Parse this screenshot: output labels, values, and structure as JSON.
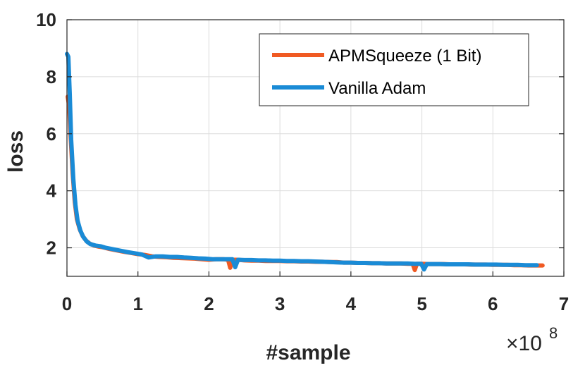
{
  "chart_data": {
    "type": "line",
    "title": "",
    "xlabel": "#sample",
    "ylabel": "loss",
    "x_multiplier_label": {
      "base": "×10",
      "exponent": "8"
    },
    "xlim": [
      0,
      7
    ],
    "ylim": [
      1,
      10
    ],
    "xticks": [
      0,
      1,
      2,
      3,
      4,
      5,
      6,
      7
    ],
    "yticks": [
      2,
      4,
      6,
      8,
      10
    ],
    "grid": true,
    "legend_position": "top-right",
    "series": [
      {
        "name": "APMSqueeze (1 Bit)",
        "color": "#F05A23",
        "points": [
          [
            0.01,
            7.3
          ],
          [
            0.03,
            7.0
          ],
          [
            0.05,
            6.0
          ],
          [
            0.08,
            4.6
          ],
          [
            0.11,
            3.6
          ],
          [
            0.14,
            3.0
          ],
          [
            0.18,
            2.65
          ],
          [
            0.22,
            2.42
          ],
          [
            0.27,
            2.25
          ],
          [
            0.32,
            2.15
          ],
          [
            0.38,
            2.08
          ],
          [
            0.45,
            2.04
          ],
          [
            0.5,
            2.02
          ],
          [
            0.6,
            1.96
          ],
          [
            0.7,
            1.91
          ],
          [
            0.8,
            1.86
          ],
          [
            0.9,
            1.82
          ],
          [
            1.0,
            1.78
          ],
          [
            1.1,
            1.75
          ],
          [
            1.2,
            1.7
          ],
          [
            1.3,
            1.68
          ],
          [
            1.4,
            1.67
          ],
          [
            1.5,
            1.65
          ],
          [
            1.6,
            1.64
          ],
          [
            1.7,
            1.63
          ],
          [
            1.8,
            1.62
          ],
          [
            1.9,
            1.6
          ],
          [
            2.0,
            1.58
          ],
          [
            2.1,
            1.6
          ],
          [
            2.2,
            1.6
          ],
          [
            2.27,
            1.58
          ],
          [
            2.3,
            1.3
          ],
          [
            2.33,
            1.58
          ],
          [
            2.4,
            1.58
          ],
          [
            2.5,
            1.56
          ],
          [
            2.6,
            1.55
          ],
          [
            2.7,
            1.55
          ],
          [
            2.8,
            1.54
          ],
          [
            2.9,
            1.54
          ],
          [
            3.0,
            1.54
          ],
          [
            3.1,
            1.53
          ],
          [
            3.2,
            1.53
          ],
          [
            3.3,
            1.52
          ],
          [
            3.4,
            1.52
          ],
          [
            3.5,
            1.51
          ],
          [
            3.6,
            1.51
          ],
          [
            3.7,
            1.5
          ],
          [
            3.8,
            1.5
          ],
          [
            3.9,
            1.48
          ],
          [
            4.0,
            1.48
          ],
          [
            4.1,
            1.47
          ],
          [
            4.2,
            1.47
          ],
          [
            4.3,
            1.46
          ],
          [
            4.4,
            1.46
          ],
          [
            4.5,
            1.45
          ],
          [
            4.6,
            1.45
          ],
          [
            4.7,
            1.45
          ],
          [
            4.8,
            1.44
          ],
          [
            4.87,
            1.44
          ],
          [
            4.9,
            1.22
          ],
          [
            4.93,
            1.44
          ],
          [
            5.0,
            1.44
          ],
          [
            5.1,
            1.43
          ],
          [
            5.2,
            1.43
          ],
          [
            5.3,
            1.43
          ],
          [
            5.4,
            1.42
          ],
          [
            5.5,
            1.42
          ],
          [
            5.6,
            1.42
          ],
          [
            5.7,
            1.41
          ],
          [
            5.8,
            1.41
          ],
          [
            5.9,
            1.41
          ],
          [
            6.0,
            1.4
          ],
          [
            6.1,
            1.4
          ],
          [
            6.2,
            1.4
          ],
          [
            6.3,
            1.39
          ],
          [
            6.4,
            1.39
          ],
          [
            6.5,
            1.38
          ],
          [
            6.6,
            1.38
          ],
          [
            6.7,
            1.38
          ]
        ]
      },
      {
        "name": "Vanilla Adam",
        "color": "#1A8BD6",
        "points": [
          [
            0.0,
            8.8
          ],
          [
            0.02,
            8.7
          ],
          [
            0.04,
            7.4
          ],
          [
            0.06,
            5.8
          ],
          [
            0.09,
            4.4
          ],
          [
            0.12,
            3.5
          ],
          [
            0.15,
            2.95
          ],
          [
            0.19,
            2.6
          ],
          [
            0.23,
            2.38
          ],
          [
            0.28,
            2.22
          ],
          [
            0.33,
            2.13
          ],
          [
            0.4,
            2.08
          ],
          [
            0.48,
            2.05
          ],
          [
            0.55,
            2.0
          ],
          [
            0.65,
            1.95
          ],
          [
            0.75,
            1.9
          ],
          [
            0.85,
            1.85
          ],
          [
            0.95,
            1.81
          ],
          [
            1.05,
            1.77
          ],
          [
            1.15,
            1.66
          ],
          [
            1.25,
            1.7
          ],
          [
            1.35,
            1.7
          ],
          [
            1.45,
            1.68
          ],
          [
            1.55,
            1.68
          ],
          [
            1.65,
            1.66
          ],
          [
            1.75,
            1.65
          ],
          [
            1.85,
            1.63
          ],
          [
            1.95,
            1.62
          ],
          [
            2.05,
            1.6
          ],
          [
            2.15,
            1.6
          ],
          [
            2.25,
            1.6
          ],
          [
            2.33,
            1.6
          ],
          [
            2.37,
            1.32
          ],
          [
            2.41,
            1.58
          ],
          [
            2.5,
            1.57
          ],
          [
            2.6,
            1.57
          ],
          [
            2.7,
            1.56
          ],
          [
            2.8,
            1.56
          ],
          [
            2.9,
            1.55
          ],
          [
            3.0,
            1.55
          ],
          [
            3.1,
            1.54
          ],
          [
            3.2,
            1.54
          ],
          [
            3.3,
            1.53
          ],
          [
            3.4,
            1.53
          ],
          [
            3.5,
            1.52
          ],
          [
            3.6,
            1.51
          ],
          [
            3.7,
            1.5
          ],
          [
            3.8,
            1.49
          ],
          [
            3.9,
            1.48
          ],
          [
            4.0,
            1.48
          ],
          [
            4.1,
            1.47
          ],
          [
            4.2,
            1.47
          ],
          [
            4.3,
            1.46
          ],
          [
            4.4,
            1.46
          ],
          [
            4.5,
            1.45
          ],
          [
            4.6,
            1.45
          ],
          [
            4.7,
            1.45
          ],
          [
            4.8,
            1.45
          ],
          [
            4.9,
            1.44
          ],
          [
            4.99,
            1.44
          ],
          [
            5.03,
            1.24
          ],
          [
            5.07,
            1.43
          ],
          [
            5.15,
            1.43
          ],
          [
            5.25,
            1.43
          ],
          [
            5.35,
            1.42
          ],
          [
            5.45,
            1.42
          ],
          [
            5.55,
            1.42
          ],
          [
            5.65,
            1.42
          ],
          [
            5.75,
            1.41
          ],
          [
            5.85,
            1.41
          ],
          [
            5.95,
            1.41
          ],
          [
            6.05,
            1.41
          ],
          [
            6.15,
            1.4
          ],
          [
            6.25,
            1.4
          ],
          [
            6.35,
            1.4
          ],
          [
            6.45,
            1.39
          ],
          [
            6.55,
            1.39
          ],
          [
            6.62,
            1.39
          ]
        ]
      }
    ]
  }
}
